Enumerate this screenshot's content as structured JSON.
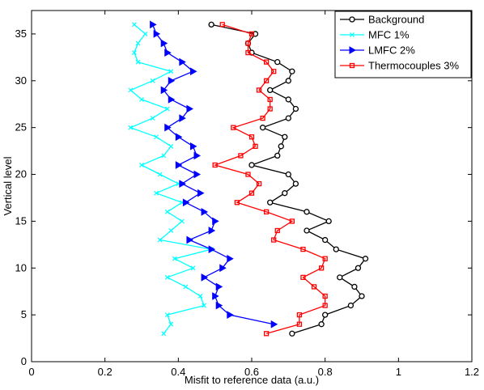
{
  "chart_data": {
    "type": "line",
    "xlabel": "Misfit to reference data (a.u.)",
    "ylabel": "Vertical level",
    "xlim": [
      0,
      1.2
    ],
    "ylim": [
      0,
      37.5
    ],
    "xticks": [
      0,
      0.2,
      0.4,
      0.6,
      0.8,
      1,
      1.2
    ],
    "xtick_labels": [
      "0",
      "0.2",
      "0.4",
      "0.6",
      "0.8",
      "1",
      "1.2"
    ],
    "yticks": [
      0,
      5,
      10,
      15,
      20,
      25,
      30,
      35
    ],
    "ytick_labels": [
      "0",
      "5",
      "10",
      "15",
      "20",
      "25",
      "30",
      "35"
    ],
    "grid": false,
    "legend_position": "top-right",
    "series": [
      {
        "name": "Background",
        "color": "#000000",
        "marker": "circle",
        "points": [
          [
            0.71,
            3
          ],
          [
            0.79,
            4
          ],
          [
            0.8,
            5
          ],
          [
            0.87,
            6
          ],
          [
            0.9,
            7
          ],
          [
            0.88,
            8
          ],
          [
            0.84,
            9
          ],
          [
            0.89,
            10
          ],
          [
            0.91,
            11
          ],
          [
            0.83,
            12
          ],
          [
            0.8,
            13
          ],
          [
            0.75,
            14
          ],
          [
            0.81,
            15
          ],
          [
            0.75,
            16
          ],
          [
            0.65,
            17
          ],
          [
            0.69,
            18
          ],
          [
            0.72,
            19
          ],
          [
            0.7,
            20
          ],
          [
            0.6,
            21
          ],
          [
            0.67,
            22
          ],
          [
            0.68,
            23
          ],
          [
            0.69,
            24
          ],
          [
            0.63,
            25
          ],
          [
            0.7,
            26
          ],
          [
            0.72,
            27
          ],
          [
            0.7,
            28
          ],
          [
            0.65,
            29
          ],
          [
            0.7,
            30
          ],
          [
            0.71,
            31
          ],
          [
            0.67,
            32
          ],
          [
            0.6,
            33
          ],
          [
            0.59,
            34
          ],
          [
            0.61,
            35
          ],
          [
            0.49,
            36
          ]
        ]
      },
      {
        "name": "MFC  1%",
        "color": "#00ffff",
        "marker": "x",
        "points": [
          [
            0.36,
            3
          ],
          [
            0.38,
            4
          ],
          [
            0.37,
            5
          ],
          [
            0.47,
            6
          ],
          [
            0.46,
            7
          ],
          [
            0.42,
            8
          ],
          [
            0.37,
            9
          ],
          [
            0.44,
            10
          ],
          [
            0.39,
            11
          ],
          [
            0.49,
            12
          ],
          [
            0.35,
            13
          ],
          [
            0.38,
            14
          ],
          [
            0.41,
            15
          ],
          [
            0.37,
            16
          ],
          [
            0.41,
            17
          ],
          [
            0.34,
            18
          ],
          [
            0.4,
            19
          ],
          [
            0.35,
            20
          ],
          [
            0.3,
            21
          ],
          [
            0.36,
            22
          ],
          [
            0.38,
            23
          ],
          [
            0.34,
            24
          ],
          [
            0.27,
            25
          ],
          [
            0.33,
            26
          ],
          [
            0.37,
            27
          ],
          [
            0.3,
            28
          ],
          [
            0.27,
            29
          ],
          [
            0.33,
            30
          ],
          [
            0.38,
            31
          ],
          [
            0.29,
            32
          ],
          [
            0.28,
            33
          ],
          [
            0.29,
            34
          ],
          [
            0.31,
            35
          ],
          [
            0.28,
            36
          ]
        ]
      },
      {
        "name": "LMFC 2%",
        "color": "#0000ff",
        "marker": "triangle-right",
        "points": [
          [
            0.66,
            4
          ],
          [
            0.54,
            5
          ],
          [
            0.51,
            6
          ],
          [
            0.5,
            7
          ],
          [
            0.51,
            8
          ],
          [
            0.47,
            9
          ],
          [
            0.52,
            10
          ],
          [
            0.54,
            11
          ],
          [
            0.49,
            12
          ],
          [
            0.43,
            13
          ],
          [
            0.49,
            14
          ],
          [
            0.5,
            15
          ],
          [
            0.47,
            16
          ],
          [
            0.42,
            17
          ],
          [
            0.46,
            18
          ],
          [
            0.41,
            19
          ],
          [
            0.45,
            20
          ],
          [
            0.4,
            21
          ],
          [
            0.45,
            22
          ],
          [
            0.44,
            23
          ],
          [
            0.4,
            24
          ],
          [
            0.37,
            25
          ],
          [
            0.41,
            26
          ],
          [
            0.43,
            27
          ],
          [
            0.38,
            28
          ],
          [
            0.36,
            29
          ],
          [
            0.38,
            30
          ],
          [
            0.44,
            31
          ],
          [
            0.41,
            32
          ],
          [
            0.37,
            33
          ],
          [
            0.36,
            34
          ],
          [
            0.34,
            35
          ],
          [
            0.33,
            36
          ]
        ]
      },
      {
        "name": "Thermocouples 3%",
        "color": "#ff0000",
        "marker": "square",
        "points": [
          [
            0.64,
            3
          ],
          [
            0.73,
            4
          ],
          [
            0.73,
            5
          ],
          [
            0.8,
            6
          ],
          [
            0.8,
            7
          ],
          [
            0.77,
            8
          ],
          [
            0.74,
            9
          ],
          [
            0.79,
            10
          ],
          [
            0.8,
            11
          ],
          [
            0.74,
            12
          ],
          [
            0.66,
            13
          ],
          [
            0.67,
            14
          ],
          [
            0.71,
            15
          ],
          [
            0.64,
            16
          ],
          [
            0.56,
            17
          ],
          [
            0.6,
            18
          ],
          [
            0.62,
            19
          ],
          [
            0.59,
            20
          ],
          [
            0.5,
            21
          ],
          [
            0.57,
            22
          ],
          [
            0.61,
            23
          ],
          [
            0.6,
            24
          ],
          [
            0.55,
            25
          ],
          [
            0.63,
            26
          ],
          [
            0.65,
            27
          ],
          [
            0.65,
            28
          ],
          [
            0.62,
            29
          ],
          [
            0.64,
            30
          ],
          [
            0.66,
            31
          ],
          [
            0.64,
            32
          ],
          [
            0.59,
            33
          ],
          [
            0.59,
            34
          ],
          [
            0.6,
            35
          ],
          [
            0.52,
            36
          ]
        ]
      }
    ]
  }
}
